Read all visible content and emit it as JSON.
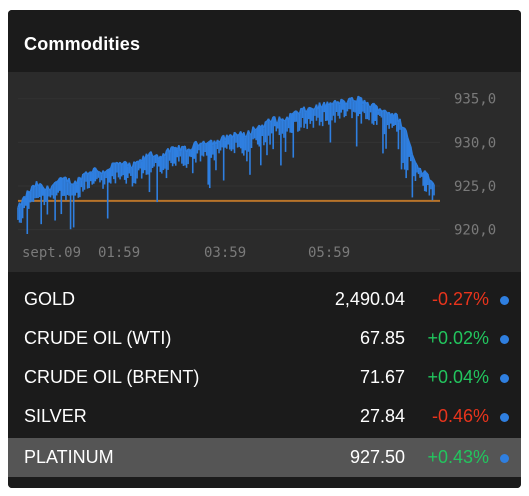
{
  "widget": {
    "title": "Commodities"
  },
  "colors": {
    "background": "#1b1b1b",
    "chart_background": "#2b2b2b",
    "line": "#2f7fe0",
    "reference_line": "#b8742a",
    "negative": "#e8341c",
    "positive": "#22c55e",
    "selected_row": "#555555"
  },
  "chart_data": {
    "type": "line",
    "title": "",
    "xlabel": "",
    "ylabel": "",
    "x_ticks": [
      "sept.09",
      "01:59",
      "03:59",
      "05:59"
    ],
    "y_ticks": [
      "935,0",
      "930,0",
      "925,0",
      "920,0"
    ],
    "ylim": [
      919.5,
      936.0
    ],
    "reference_value": 923.3,
    "series": [
      {
        "values": [
          922.0,
          923.8,
          924.8,
          924.2,
          925.0,
          925.4,
          924.9,
          926.0,
          926.5,
          926.2,
          927.0,
          927.2,
          926.8,
          927.5,
          928.3,
          928.0,
          928.6,
          929.0,
          928.7,
          929.5,
          929.8,
          929.6,
          930.2,
          930.6,
          930.4,
          931.2,
          931.6,
          932.3,
          932.1,
          932.8,
          933.2,
          933.5,
          933.8,
          934.0,
          934.2,
          934.3,
          934.6,
          934.0,
          933.6,
          933.2,
          932.6,
          931.0,
          927.2,
          926.2,
          925.0
        ]
      }
    ]
  },
  "commodities": [
    {
      "name": "GOLD",
      "price": "2,490.04",
      "change": "-0.27%",
      "direction": "neg"
    },
    {
      "name": "CRUDE OIL (WTI)",
      "price": "67.85",
      "change": "+0.02%",
      "direction": "pos"
    },
    {
      "name": "CRUDE OIL (BRENT)",
      "price": "71.67",
      "change": "+0.04%",
      "direction": "pos"
    },
    {
      "name": "SILVER",
      "price": "27.84",
      "change": "-0.46%",
      "direction": "neg"
    },
    {
      "name": "PLATINUM",
      "price": "927.50",
      "change": "+0.43%",
      "direction": "pos",
      "selected": true
    }
  ]
}
